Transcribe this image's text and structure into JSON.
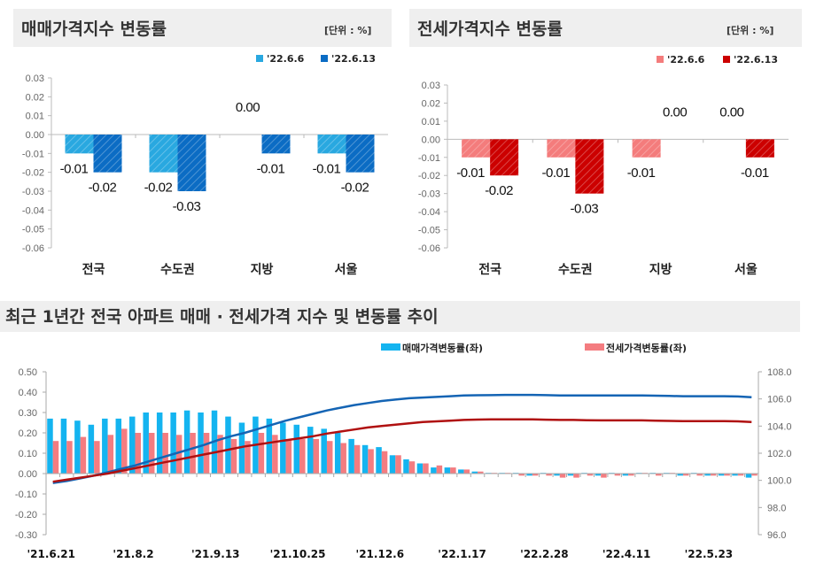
{
  "chart_data": [
    {
      "type": "bar",
      "title": "매매가격지수 변동률",
      "unit": "[단위 : %]",
      "categories": [
        "전국",
        "수도권",
        "지방",
        "서울"
      ],
      "series": [
        {
          "name": "'22.6.6",
          "values": [
            -0.01,
            -0.02,
            0.0,
            -0.01
          ],
          "color": "#29a8e0"
        },
        {
          "name": "'22.6.13",
          "values": [
            -0.02,
            -0.03,
            -0.01,
            -0.02
          ],
          "color": "#0b6cc4"
        }
      ],
      "data_labels": [
        [
          "-0.01",
          "-0.02",
          "0.00",
          "-0.01"
        ],
        [
          "-0.02",
          "-0.03",
          "-0.01",
          "-0.02"
        ]
      ],
      "ylim": [
        -0.06,
        0.03
      ],
      "yticks": [
        "0.03",
        "0.02",
        "0.01",
        "0.00",
        "-0.01",
        "-0.02",
        "-0.03",
        "-0.04",
        "-0.05",
        "-0.06"
      ],
      "legend": "top-right"
    },
    {
      "type": "bar",
      "title": "전세가격지수 변동률",
      "unit": "[단위 : %]",
      "categories": [
        "전국",
        "수도권",
        "지방",
        "서울"
      ],
      "series": [
        {
          "name": "'22.6.6",
          "values": [
            -0.01,
            -0.01,
            -0.01,
            0.0
          ],
          "color": "#f47c7c"
        },
        {
          "name": "'22.6.13",
          "values": [
            -0.02,
            -0.03,
            0.0,
            -0.01
          ],
          "color": "#cc0000"
        }
      ],
      "data_labels": [
        [
          "-0.01",
          "-0.01",
          "-0.01",
          "0.00"
        ],
        [
          "-0.02",
          "-0.03",
          "0.00",
          "-0.01"
        ]
      ],
      "ylim": [
        -0.06,
        0.03
      ],
      "yticks": [
        "0.03",
        "0.02",
        "0.01",
        "0.00",
        "-0.01",
        "-0.02",
        "-0.03",
        "-0.04",
        "-0.05",
        "-0.06"
      ],
      "legend": "top-right"
    },
    {
      "type": "bar+line",
      "title": "최근 1년간 전국 아파트 매매 · 전세가격 지수 및 변동률 추이",
      "x_tick_labels": [
        "'21.6.21",
        "'21.8.2",
        "'21.9.13",
        "'21.10.25",
        "'21.12.6",
        "'22.1.17",
        "'22.2.28",
        "'22.4.11",
        "'22.5.23"
      ],
      "x_tick_every_weeks": 6,
      "ylim_left": [
        -0.3,
        0.5
      ],
      "yticks_left": [
        "0.50",
        "0.40",
        "0.30",
        "0.20",
        "0.10",
        "0.00",
        "-0.10",
        "-0.20",
        "-0.30"
      ],
      "ylim_right": [
        96.0,
        108.0
      ],
      "yticks_right": [
        "108.0",
        "106.0",
        "104.0",
        "102.0",
        "100.0",
        "98.0",
        "96.0"
      ],
      "legend": "top",
      "bar_series": [
        {
          "name": "매매가격변동률(좌)",
          "color": "#14b4f0",
          "values": [
            0.27,
            0.27,
            0.26,
            0.24,
            0.27,
            0.27,
            0.28,
            0.3,
            0.3,
            0.3,
            0.31,
            0.3,
            0.31,
            0.28,
            0.25,
            0.28,
            0.27,
            0.25,
            0.24,
            0.23,
            0.22,
            0.2,
            0.17,
            0.14,
            0.13,
            0.09,
            0.07,
            0.05,
            0.03,
            0.03,
            0.02,
            0.01,
            0.0,
            0.0,
            0.0,
            -0.01,
            0.0,
            -0.01,
            -0.01,
            0.0,
            -0.01,
            0.0,
            -0.01,
            0.0,
            0.0,
            0.0,
            -0.01,
            0.0,
            -0.01,
            -0.01,
            -0.01,
            -0.02
          ]
        },
        {
          "name": "전세가격변동률(좌)",
          "color": "#f47c80",
          "values": [
            0.16,
            0.16,
            0.18,
            0.16,
            0.19,
            0.22,
            0.2,
            0.2,
            0.2,
            0.19,
            0.2,
            0.2,
            0.19,
            0.17,
            0.16,
            0.2,
            0.19,
            0.17,
            0.17,
            0.17,
            0.16,
            0.15,
            0.14,
            0.12,
            0.11,
            0.09,
            0.06,
            0.05,
            0.04,
            0.03,
            0.02,
            0.01,
            0.0,
            0.0,
            -0.01,
            -0.01,
            -0.01,
            -0.02,
            -0.02,
            -0.01,
            -0.02,
            -0.01,
            -0.01,
            0.0,
            -0.01,
            0.0,
            -0.01,
            -0.01,
            -0.01,
            -0.01,
            -0.01,
            -0.01
          ]
        }
      ],
      "line_series": [
        {
          "color": "#1464b4",
          "values": [
            99.8,
            99.95,
            100.15,
            100.35,
            100.6,
            100.85,
            101.1,
            101.4,
            101.7,
            102.0,
            102.3,
            102.6,
            102.95,
            103.25,
            103.5,
            103.8,
            104.1,
            104.4,
            104.65,
            104.9,
            105.15,
            105.35,
            105.55,
            105.7,
            105.85,
            105.95,
            106.05,
            106.1,
            106.15,
            106.2,
            106.25,
            106.27,
            106.28,
            106.3,
            106.3,
            106.3,
            106.28,
            106.26,
            106.25,
            106.25,
            106.25,
            106.25,
            106.25,
            106.25,
            106.24,
            106.22,
            106.2,
            106.2,
            106.2,
            106.2,
            106.18,
            106.12
          ]
        },
        {
          "color": "#b01010",
          "values": [
            99.9,
            100.05,
            100.2,
            100.35,
            100.5,
            100.7,
            100.9,
            101.1,
            101.3,
            101.5,
            101.7,
            101.9,
            102.1,
            102.3,
            102.5,
            102.65,
            102.8,
            102.95,
            103.1,
            103.25,
            103.45,
            103.6,
            103.75,
            103.9,
            104.0,
            104.1,
            104.2,
            104.3,
            104.35,
            104.4,
            104.45,
            104.48,
            104.5,
            104.5,
            104.5,
            104.5,
            104.47,
            104.45,
            104.45,
            104.43,
            104.42,
            104.42,
            104.42,
            104.42,
            104.4,
            104.38,
            104.36,
            104.36,
            104.36,
            104.36,
            104.35,
            104.3
          ]
        }
      ]
    }
  ]
}
